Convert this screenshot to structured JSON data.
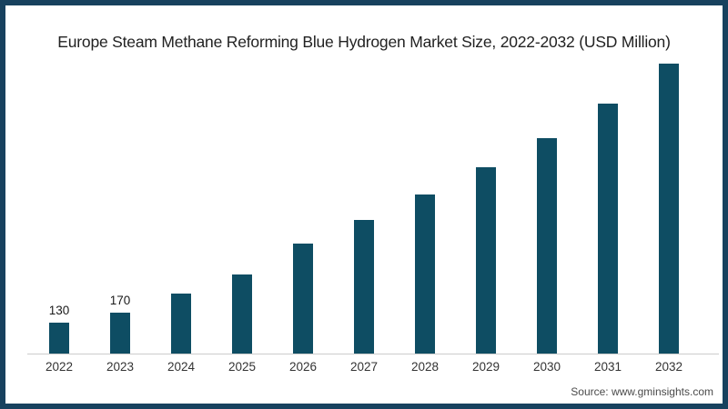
{
  "chart_data": {
    "type": "bar",
    "title": "Europe Steam Methane Reforming Blue Hydrogen Market Size, 2022-2032 (USD Million)",
    "categories": [
      "2022",
      "2023",
      "2024",
      "2025",
      "2026",
      "2027",
      "2028",
      "2029",
      "2030",
      "2031",
      "2032"
    ],
    "values": [
      130,
      170,
      250,
      330,
      460,
      560,
      665,
      780,
      900,
      1045,
      1210
    ],
    "value_labels": [
      "130",
      "170",
      "",
      "",
      "",
      "",
      "",
      "",
      "",
      "",
      ""
    ],
    "xlabel": "",
    "ylabel": "",
    "ylim": [
      0,
      1280
    ],
    "grid": false,
    "legend": "none",
    "bar_color": "#0e4d63",
    "axis_line_color": "#cccccc"
  },
  "frame": {
    "border_color": "#17415e"
  },
  "source": {
    "text": "Source: www.gminsights.com"
  }
}
